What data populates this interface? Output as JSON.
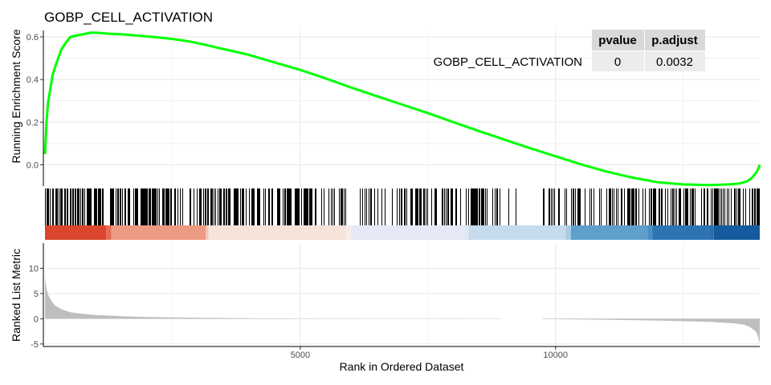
{
  "title": "GOBP_CELL_ACTIVATION",
  "colors": {
    "curve": "#00ff00",
    "hits": "#000000",
    "metric_fill": "#bebebe",
    "grid": "#ebebeb",
    "table_header_bg": "#d9d9d9",
    "table_cell_bg": "#ececec"
  },
  "table": {
    "headers": [
      "pvalue",
      "p.adjust"
    ],
    "row_label": "GOBP_CELL_ACTIVATION",
    "values": [
      "0",
      "0.0032"
    ]
  },
  "chart_data": [
    {
      "type": "line",
      "panel": "running-enrichment-score",
      "ylabel": "Running Enrichment Score",
      "yticks": [
        "0.0",
        "0.2",
        "0.4",
        "0.6"
      ],
      "ylim": [
        -0.1,
        0.63
      ],
      "xlim": [
        0,
        14000
      ],
      "series": [
        {
          "x": [
            0,
            30,
            60,
            100,
            150,
            200,
            260,
            320,
            400,
            500,
            600,
            700,
            800,
            900,
            1000,
            1100,
            1200,
            1300,
            1500,
            1700,
            1900,
            2200,
            2500,
            2800,
            3100,
            3400,
            3700,
            4000,
            4500,
            5000,
            5500,
            6000,
            6500,
            7000,
            7500,
            8000,
            8500,
            9000,
            9500,
            10000,
            10500,
            11000,
            11500,
            12000,
            12500,
            13000,
            13200,
            13400,
            13600,
            13750,
            13850,
            13950,
            14000
          ],
          "y": [
            0.05,
            0.2,
            0.29,
            0.35,
            0.42,
            0.46,
            0.5,
            0.54,
            0.57,
            0.6,
            0.605,
            0.61,
            0.615,
            0.62,
            0.62,
            0.618,
            0.616,
            0.614,
            0.612,
            0.608,
            0.604,
            0.598,
            0.59,
            0.58,
            0.565,
            0.548,
            0.532,
            0.515,
            0.48,
            0.445,
            0.405,
            0.362,
            0.322,
            0.282,
            0.242,
            0.2,
            0.158,
            0.118,
            0.078,
            0.04,
            0.002,
            -0.032,
            -0.06,
            -0.082,
            -0.092,
            -0.095,
            -0.094,
            -0.092,
            -0.088,
            -0.078,
            -0.06,
            -0.03,
            0.0
          ]
        }
      ]
    },
    {
      "type": "heatmap",
      "panel": "hit-positions",
      "hit_density": [
        0.5,
        0.55,
        0.5,
        0.48,
        0.42,
        0.5,
        0.2,
        0.3,
        0.35,
        0.4,
        0.3,
        0.35,
        0.3,
        0.45,
        0.5,
        0.55
      ],
      "color_stops": [
        {
          "rank": 0,
          "color": "#d9462d"
        },
        {
          "rank": 1200,
          "color": "#e56b52"
        },
        {
          "rank": 1300,
          "color": "#ee9a83"
        },
        {
          "rank": 3150,
          "color": "#f4c4b4"
        },
        {
          "rank": 3200,
          "color": "#f7e3da"
        },
        {
          "rank": 5900,
          "color": "#f5ede9"
        },
        {
          "rank": 6000,
          "color": "#e5e9f5"
        },
        {
          "rank": 8200,
          "color": "#dfe7f3"
        },
        {
          "rank": 8300,
          "color": "#c6dbec"
        },
        {
          "rank": 10200,
          "color": "#a9cce3"
        },
        {
          "rank": 10300,
          "color": "#5f9fcc"
        },
        {
          "rank": 11800,
          "color": "#4a8ec4"
        },
        {
          "rank": 11900,
          "color": "#2d74b4"
        },
        {
          "rank": 13000,
          "color": "#2a6eae"
        },
        {
          "rank": 13100,
          "color": "#155a9e"
        },
        {
          "rank": 14000,
          "color": "#0c4a8c"
        }
      ]
    },
    {
      "type": "area",
      "panel": "ranked-list-metric",
      "ylabel": "Ranked List Metric",
      "xlabel": "Rank in Ordered Dataset",
      "yticks": [
        "-5",
        "0",
        "5",
        "10"
      ],
      "ylim": [
        -5.5,
        15
      ],
      "xlim": [
        0,
        14000
      ],
      "xticks": [
        "5000",
        "10000"
      ],
      "series": [
        {
          "x": [
            0,
            10,
            30,
            60,
            100,
            150,
            200,
            300,
            400,
            500,
            700,
            1000,
            1500,
            2000,
            3000,
            4000,
            5000,
            6000,
            7000,
            8000,
            9000,
            10000,
            11000,
            12000,
            13000,
            13500,
            13700,
            13800,
            13900,
            13950,
            14000
          ],
          "y": [
            8.5,
            7.5,
            6.0,
            4.8,
            4.0,
            3.2,
            2.6,
            2.0,
            1.6,
            1.3,
            1.0,
            0.75,
            0.5,
            0.35,
            0.2,
            0.1,
            0.05,
            0.02,
            0.0,
            -0.02,
            -0.05,
            -0.1,
            -0.2,
            -0.35,
            -0.6,
            -0.9,
            -1.2,
            -1.6,
            -2.3,
            -3.0,
            -4.8
          ]
        }
      ],
      "gap_range": [
        8950,
        9750
      ]
    }
  ]
}
